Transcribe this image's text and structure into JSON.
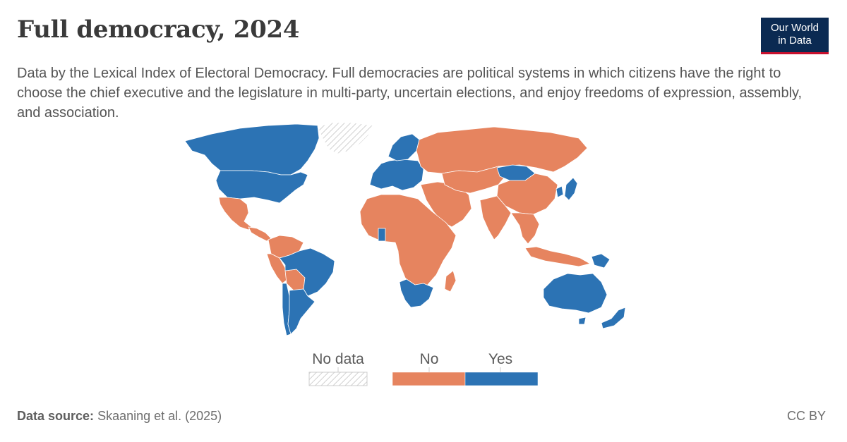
{
  "header": {
    "title": "Full democracy, 2024",
    "subtitle": "Data by the Lexical Index of Electoral Democracy. Full democracies are political systems in which citizens have the right to choose the chief executive and the legislature in multi-party, uncertain elections, and enjoy freedoms of expression, assembly, and association."
  },
  "logo": {
    "line1": "Our World",
    "line2": "in Data"
  },
  "legend": {
    "no_data_label": "No data",
    "categories": [
      {
        "label": "No",
        "color": "#e6845f"
      },
      {
        "label": "Yes",
        "color": "#2c73b4"
      }
    ]
  },
  "colors": {
    "no": "#e6845f",
    "yes": "#2c73b4",
    "no_data": "#d0d0d0",
    "border": "#ffffff"
  },
  "map_data": {
    "type": "choropleth",
    "year": 2024,
    "variable": "Full democracy",
    "regions": [
      {
        "region": "Canada",
        "value": "Yes"
      },
      {
        "region": "United States",
        "value": "Yes"
      },
      {
        "region": "Greenland",
        "value": "No data"
      },
      {
        "region": "Mexico",
        "value": "No"
      },
      {
        "region": "Central America",
        "value": "No"
      },
      {
        "region": "Colombia and Venezuela",
        "value": "No"
      },
      {
        "region": "Peru",
        "value": "No"
      },
      {
        "region": "Bolivia",
        "value": "No"
      },
      {
        "region": "Brazil",
        "value": "Yes"
      },
      {
        "region": "Chile",
        "value": "Yes"
      },
      {
        "region": "Argentina",
        "value": "Yes"
      },
      {
        "region": "Western and Central Europe",
        "value": "Yes"
      },
      {
        "region": "Scandinavia",
        "value": "Yes"
      },
      {
        "region": "Russia",
        "value": "No"
      },
      {
        "region": "Middle East",
        "value": "No"
      },
      {
        "region": "Africa",
        "value": "No"
      },
      {
        "region": "Ghana",
        "value": "Yes"
      },
      {
        "region": "Southern Africa",
        "value": "Yes"
      },
      {
        "region": "Central Asia",
        "value": "No"
      },
      {
        "region": "Mongolia",
        "value": "Yes"
      },
      {
        "region": "China",
        "value": "No"
      },
      {
        "region": "India",
        "value": "No"
      },
      {
        "region": "Southeast Asia",
        "value": "No"
      },
      {
        "region": "Japan",
        "value": "Yes"
      },
      {
        "region": "South Korea",
        "value": "Yes"
      },
      {
        "region": "Indonesia",
        "value": "No"
      },
      {
        "region": "Papua New Guinea",
        "value": "Yes"
      },
      {
        "region": "Australia",
        "value": "Yes"
      },
      {
        "region": "New Zealand",
        "value": "Yes"
      }
    ]
  },
  "footer": {
    "source_label": "Data source:",
    "source_value": "Skaaning et al. (2025)",
    "license": "CC BY"
  }
}
